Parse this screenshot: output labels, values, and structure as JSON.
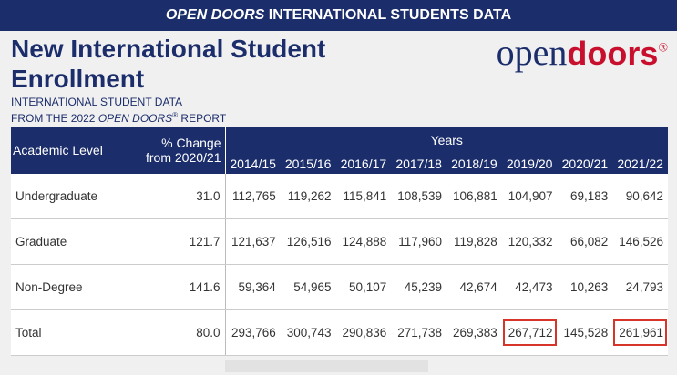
{
  "banner": {
    "italic": "OPEN DOORS",
    "rest": " INTERNATIONAL STUDENTS DATA"
  },
  "title": "New International Student Enrollment",
  "subtitle": {
    "line1": "INTERNATIONAL STUDENT DATA",
    "line2_start": "FROM THE 2022 ",
    "line2_italic": "OPEN DOORS",
    "line2_mark": "®",
    "line2_end": " REPORT"
  },
  "logo": {
    "open": "open",
    "doors": "doors",
    "mark": "®"
  },
  "table": {
    "headers": {
      "level": "Academic Level",
      "change_1": "% Change",
      "change_2": "from 2020/21",
      "years_group": "Years",
      "years": [
        "2014/15",
        "2015/16",
        "2016/17",
        "2017/18",
        "2018/19",
        "2019/20",
        "2020/21",
        "2021/22"
      ]
    },
    "rows": [
      [
        "Undergraduate",
        "31.0",
        "112,765",
        "119,262",
        "115,841",
        "108,539",
        "106,881",
        "104,907",
        "69,183",
        "90,642"
      ],
      [
        "Graduate",
        "121.7",
        "121,637",
        "126,516",
        "124,888",
        "117,960",
        "119,828",
        "120,332",
        "66,082",
        "146,526"
      ],
      [
        "Non-Degree",
        "141.6",
        "59,364",
        "54,965",
        "50,107",
        "45,239",
        "42,674",
        "42,473",
        "10,263",
        "24,793"
      ],
      [
        "Total",
        "80.0",
        "293,766",
        "300,743",
        "290,836",
        "271,738",
        "269,383",
        "267,712",
        "145,528",
        "261,961"
      ]
    ]
  }
}
